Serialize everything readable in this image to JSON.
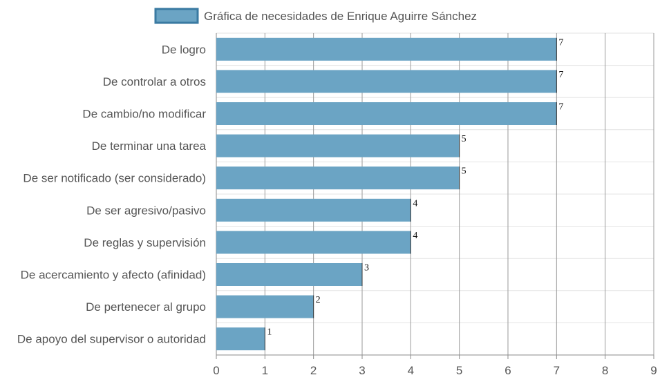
{
  "chart_data": {
    "type": "bar",
    "orientation": "horizontal",
    "legend": {
      "position": "top",
      "entries": [
        "Gráfica de necesidades de Enrique Aguirre Sánchez"
      ]
    },
    "categories": [
      "De logro",
      "De controlar a otros",
      "De cambio/no modificar",
      "De terminar una tarea",
      "De ser notificado (ser considerado)",
      "De ser agresivo/pasivo",
      "De reglas y supervisión",
      "De acercamiento y afecto (afinidad)",
      "De pertenecer al grupo",
      "De apoyo del supervisor o autoridad"
    ],
    "series": [
      {
        "name": "Gráfica de necesidades de Enrique Aguirre Sánchez",
        "values": [
          7,
          7,
          7,
          5,
          5,
          4,
          4,
          3,
          2,
          1
        ],
        "color": "#6ba4c4",
        "border_color": "#3a7aa2"
      }
    ],
    "xlim": [
      0,
      9
    ],
    "xticks": [
      "0",
      "1",
      "2",
      "3",
      "4",
      "5",
      "6",
      "7",
      "8",
      "9"
    ],
    "grid": true,
    "data_labels": true
  }
}
